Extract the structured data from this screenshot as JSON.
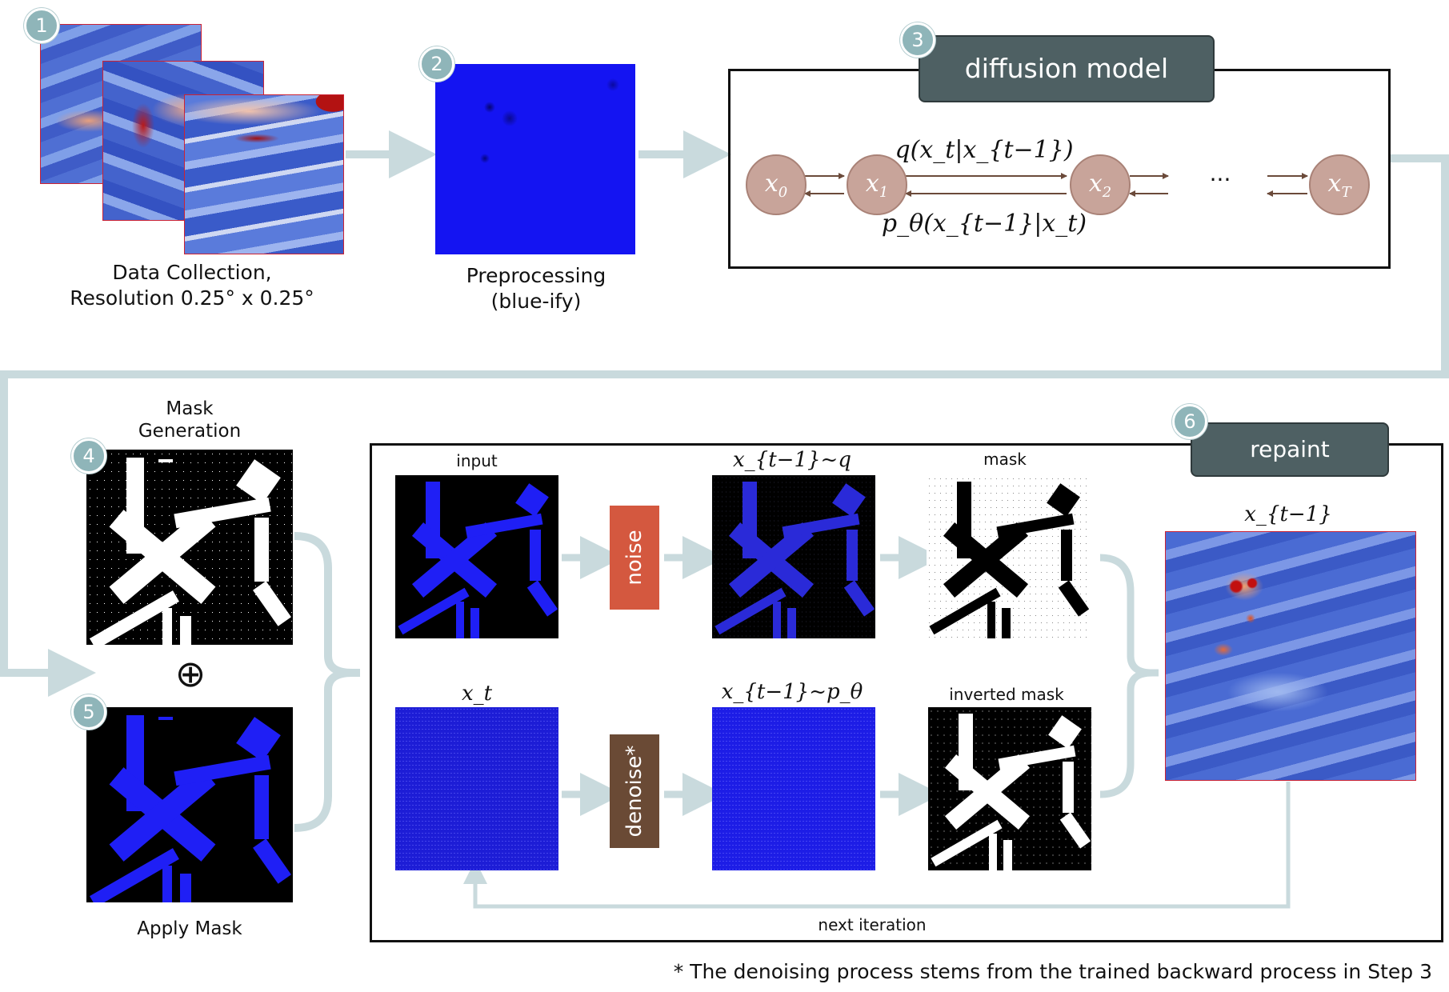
{
  "colors": {
    "arrow": "#c9dadd",
    "badge": "#8fb5b9",
    "dark_box": "#4e6063",
    "node": "#c8a49a",
    "noise": "#d4583f",
    "denoise": "#6a4a35",
    "blue": "#1010f0"
  },
  "steps": {
    "s1": {
      "badge": "1",
      "caption_line1": "Data Collection,",
      "caption_line2": "Resolution 0.25° x 0.25°"
    },
    "s2": {
      "badge": "2",
      "caption_line1": "Preprocessing",
      "caption_line2": "(blue-ify)"
    },
    "s3": {
      "badge": "3",
      "title": "diffusion model",
      "nodes": [
        "x",
        "x",
        "x",
        "x"
      ],
      "subs": [
        "0",
        "1",
        "2",
        "T"
      ],
      "ellipsis": "···",
      "forward_label": "q(x_t|x_{t−1})",
      "backward_label": "p_θ(x_{t−1}|x_t)"
    },
    "s4": {
      "badge": "4",
      "caption_line1": "Mask",
      "caption_line2": "Generation"
    },
    "plus": "⊕",
    "s5": {
      "badge": "5",
      "caption": "Apply Mask"
    },
    "s6": {
      "badge": "6",
      "title": "repaint",
      "input_label": "input",
      "xt_q_label": "x_{t−1}~q",
      "mask_label": "mask",
      "xt_label": "x_t",
      "xt_p_label": "x_{t−1}~p_θ",
      "inverted_mask_label": "inverted mask",
      "output_label": "x_{t−1}",
      "noise_label": "noise",
      "denoise_label": "denoise*",
      "next_iteration": "next iteration"
    }
  },
  "footnote": "* The denoising process stems from the trained backward process in Step 3"
}
